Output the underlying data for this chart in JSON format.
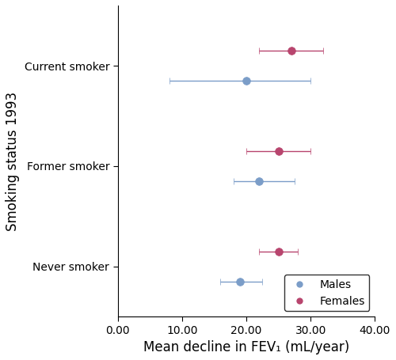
{
  "categories": [
    "Current smoker",
    "Former smoker",
    "Never smoker"
  ],
  "males": {
    "means": [
      20.0,
      22.0,
      19.0
    ],
    "ci_low": [
      8.0,
      18.0,
      16.0
    ],
    "ci_high": [
      30.0,
      27.5,
      22.5
    ],
    "color": "#7b9dc8",
    "label": "Males"
  },
  "females": {
    "means": [
      27.0,
      25.0,
      25.0
    ],
    "ci_low": [
      22.0,
      20.0,
      22.0
    ],
    "ci_high": [
      32.0,
      30.0,
      28.0
    ],
    "color": "#b8456e",
    "label": "Females"
  },
  "xlabel": "Mean decline in FEV₁ (mL/year)",
  "ylabel": "Smoking status 1993",
  "xlim": [
    0.0,
    40.0
  ],
  "xticks": [
    0.0,
    10.0,
    20.0,
    30.0,
    40.0
  ],
  "xtick_labels": [
    "0.00",
    "10.00",
    "20.00",
    "30.00",
    "40.00"
  ],
  "marker_size": 7,
  "capsize": 3,
  "linewidth": 1.0,
  "xlabel_fontsize": 12,
  "ylabel_fontsize": 12,
  "tick_fontsize": 10,
  "legend_fontsize": 10,
  "background_color": "#ffffff"
}
